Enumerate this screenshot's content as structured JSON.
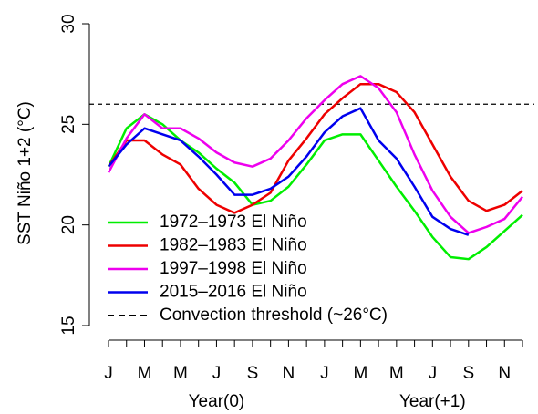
{
  "chart_data": {
    "type": "line",
    "y_label": "SST Niño 1+2 (°C)",
    "categories": [
      "J",
      null,
      "M",
      null,
      "M",
      null,
      "J",
      null,
      "S",
      null,
      "N",
      null,
      "J",
      null,
      "M",
      null,
      "M",
      null,
      "J",
      null,
      "S",
      null,
      "N",
      null
    ],
    "x_group_labels": [
      "Year(0)",
      "Year(+1)"
    ],
    "ylim": [
      15,
      30
    ],
    "yticks": [
      15,
      20,
      25,
      30
    ],
    "series": [
      {
        "name": "1972–1973 El Niño",
        "color": "#00ee00",
        "values": [
          22.9,
          24.8,
          25.5,
          25.0,
          24.2,
          23.6,
          22.8,
          22.1,
          21.0,
          21.2,
          21.9,
          23.0,
          24.2,
          24.5,
          24.5,
          23.2,
          21.9,
          20.7,
          19.4,
          18.4,
          18.3,
          18.9,
          19.7,
          20.5
        ]
      },
      {
        "name": "1982–1983 El Niño",
        "color": "#ee0000",
        "values": [
          22.9,
          24.2,
          24.2,
          23.5,
          23.0,
          21.8,
          21.0,
          20.6,
          21.0,
          21.6,
          23.2,
          24.3,
          25.5,
          26.3,
          27.0,
          27.0,
          26.6,
          25.6,
          24.0,
          22.4,
          21.2,
          20.7,
          21.0,
          21.7
        ]
      },
      {
        "name": "1997–1998 El Niño",
        "color": "#ee00ee",
        "values": [
          22.6,
          24.3,
          25.5,
          24.8,
          24.8,
          24.3,
          23.6,
          23.1,
          22.9,
          23.3,
          24.2,
          25.3,
          26.2,
          27.0,
          27.4,
          26.8,
          25.6,
          23.5,
          21.7,
          20.4,
          19.6,
          19.9,
          20.3,
          21.4
        ]
      },
      {
        "name": "2015–2016 El Niño",
        "color": "#0000ee",
        "values": [
          22.9,
          24.0,
          24.8,
          24.5,
          24.2,
          23.4,
          22.5,
          21.5,
          21.5,
          21.8,
          22.4,
          23.4,
          24.6,
          25.4,
          25.8,
          24.2,
          23.3,
          21.9,
          20.4,
          19.8,
          19.5,
          null,
          null,
          null
        ]
      }
    ],
    "threshold": {
      "name": "Convection threshold (~26°C)",
      "value": 26,
      "color": "#000000"
    }
  }
}
